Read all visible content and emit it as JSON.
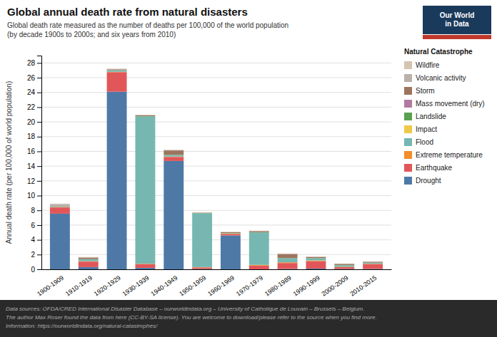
{
  "chart_data": {
    "type": "bar",
    "stacked": true,
    "title": "Global annual death rate from natural disasters",
    "subtitle": [
      "Global death rate measured as the number of deaths per 100,000 of the world population",
      "(by decade 1900s to 2000s; and six years from 2010)"
    ],
    "ylabel": "Annual death rate (per 100,000 of world population)",
    "legend_title": "Natural Catastrophe",
    "logo": [
      "Our World",
      "in Data"
    ],
    "footer": [
      "Data sources: OFDA/CRED International Disaster Database – ourworldindata.org – University of Catholique de Louvain – Brussels – Belgium.",
      "The author Max Roser found the data from here (CC-BY-SA license). You are welcome to download/please refer to the source when you find more.",
      "Information: https://ourworldindata.org/natural-catastrophes/"
    ],
    "categories": [
      "1900-1909",
      "1910-1919",
      "1920-1929",
      "1930-1939",
      "1940-1949",
      "1950-1959",
      "1960-1969",
      "1970-1979",
      "1980-1989",
      "1990-1999",
      "2000-2009",
      "2010-2015"
    ],
    "series": [
      {
        "name": "Drought",
        "color": "#4e79a7",
        "values": [
          7.55,
          0.3,
          24.1,
          0.2,
          14.7,
          0.05,
          4.6,
          0.0,
          0.05,
          0.1,
          0.05,
          0.05
        ]
      },
      {
        "name": "Earthquake",
        "color": "#e15759",
        "values": [
          0.85,
          0.75,
          2.65,
          0.5,
          0.55,
          0.2,
          0.2,
          0.5,
          0.8,
          1.0,
          0.25,
          0.65
        ]
      },
      {
        "name": "Extreme temperature",
        "color": "#f28e2b",
        "values": [
          0.05,
          0.05,
          0.05,
          0.05,
          0.05,
          0.05,
          0.05,
          0.1,
          0.1,
          0.1,
          0.05,
          0.05
        ]
      },
      {
        "name": "Flood",
        "color": "#76b7b2",
        "values": [
          0.05,
          0.25,
          0.2,
          20.0,
          0.2,
          7.3,
          0.05,
          4.4,
          0.55,
          0.3,
          0.2,
          0.12
        ]
      },
      {
        "name": "Impact",
        "color": "#edc948",
        "values": [
          0.0,
          0.0,
          0.0,
          0.0,
          0.0,
          0.0,
          0.0,
          0.0,
          0.0,
          0.0,
          0.0,
          0.0
        ]
      },
      {
        "name": "Landslide",
        "color": "#59a14f",
        "values": [
          0.03,
          0.03,
          0.03,
          0.03,
          0.03,
          0.03,
          0.03,
          0.03,
          0.03,
          0.03,
          0.03,
          0.03
        ]
      },
      {
        "name": "Mass movement (dry)",
        "color": "#b07aa1",
        "values": [
          0.0,
          0.0,
          0.0,
          0.0,
          0.0,
          0.0,
          0.0,
          0.0,
          0.0,
          0.0,
          0.0,
          0.0
        ]
      },
      {
        "name": "Storm",
        "color": "#9c755f",
        "values": [
          0.05,
          0.2,
          0.1,
          0.1,
          0.6,
          0.05,
          0.1,
          0.15,
          0.55,
          0.15,
          0.15,
          0.12
        ]
      },
      {
        "name": "Volcanic activity",
        "color": "#bab0ac",
        "values": [
          0.28,
          0.05,
          0.05,
          0.05,
          0.05,
          0.02,
          0.02,
          0.02,
          0.02,
          0.02,
          0.02,
          0.02
        ]
      },
      {
        "name": "Wildfire",
        "color": "#d4c4b0",
        "values": [
          0.05,
          0.05,
          0.05,
          0.05,
          0.05,
          0.05,
          0.05,
          0.05,
          0.05,
          0.05,
          0.05,
          0.05
        ]
      }
    ],
    "ylim": [
      0,
      29
    ],
    "yticks": [
      0,
      2,
      4,
      6,
      8,
      10,
      12,
      14,
      16,
      18,
      20,
      22,
      24,
      26,
      28
    ],
    "grid": true,
    "legend": "right"
  }
}
